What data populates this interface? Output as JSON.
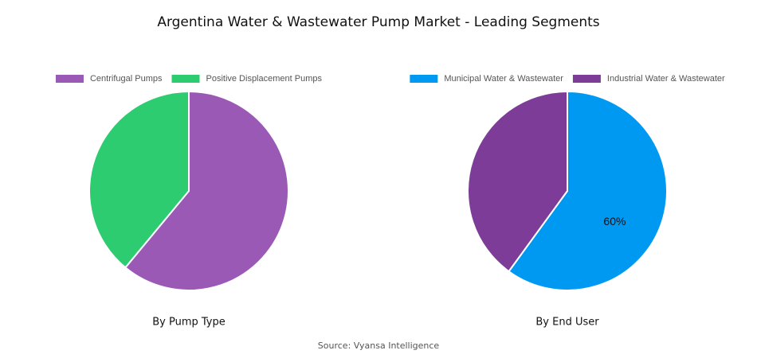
{
  "title": "Argentina Water & Wastewater Pump Market - Leading Segments",
  "source": "Source: Vyansa Intelligence",
  "chart_data": [
    {
      "type": "pie",
      "subtitle": "By Pump Type",
      "categories": [
        "Centrifugal Pumps",
        "Positive Displacement Pumps"
      ],
      "values": [
        61,
        39
      ],
      "colors": [
        "#9b59b6",
        "#2ecc71"
      ]
    },
    {
      "type": "pie",
      "subtitle": "By End User",
      "categories": [
        "Municipal Water & Wastewater",
        "Industrial Water & Wastewater"
      ],
      "values": [
        60,
        40
      ],
      "value_labels": [
        "60%",
        null
      ],
      "colors": [
        "#0099f2",
        "#7d3c98"
      ]
    }
  ]
}
